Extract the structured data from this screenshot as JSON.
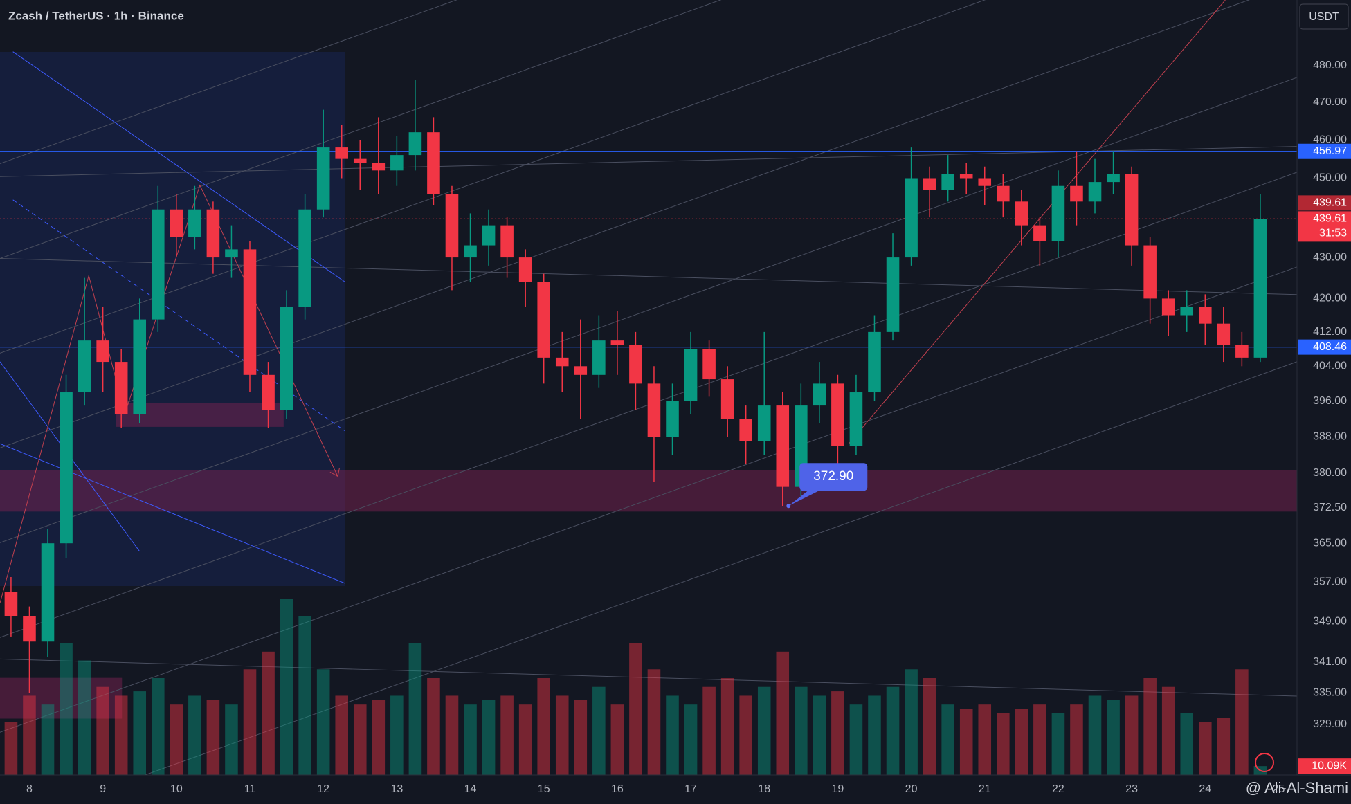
{
  "chart_data": {
    "type": "candlestick",
    "title": "Zcash / TetherUS · 1h · Binance",
    "currency": "USDT",
    "countdown": "31:53",
    "watermark": "@ Ali-Al-Shami",
    "log_scale": true,
    "grid": true,
    "up_color": "#089981",
    "down_color": "#f23645",
    "xlim": [
      7.6,
      25.25
    ],
    "xticks": [
      8,
      9,
      10,
      11,
      12,
      13,
      14,
      15,
      16,
      17,
      18,
      19,
      20,
      21,
      22,
      23,
      24,
      25
    ],
    "ylim": [
      319.6,
      498.4
    ],
    "yticks": [
      {
        "value": 480,
        "label": "480.00"
      },
      {
        "value": 470,
        "label": "470.00"
      },
      {
        "value": 460,
        "label": "460.00"
      },
      {
        "value": 450,
        "label": "450.00"
      },
      {
        "value": 430,
        "label": "430.00"
      },
      {
        "value": 420,
        "label": "420.00"
      },
      {
        "value": 412,
        "label": "412.00"
      },
      {
        "value": 404,
        "label": "404.00"
      },
      {
        "value": 396,
        "label": "396.00"
      },
      {
        "value": 388,
        "label": "388.00"
      },
      {
        "value": 380,
        "label": "380.00"
      },
      {
        "value": 372.5,
        "label": "372.50"
      },
      {
        "value": 365,
        "label": "365.00"
      },
      {
        "value": 357,
        "label": "357.00"
      },
      {
        "value": 349,
        "label": "349.00"
      },
      {
        "value": 341,
        "label": "341.00"
      },
      {
        "value": 335,
        "label": "335.00"
      },
      {
        "value": 329,
        "label": "329.00"
      }
    ],
    "x": [
      7.75,
      8,
      8.25,
      8.5,
      8.75,
      9,
      9.25,
      9.5,
      9.75,
      10,
      10.25,
      10.5,
      10.75,
      11,
      11.25,
      11.5,
      11.75,
      12,
      12.25,
      12.5,
      12.75,
      13,
      13.25,
      13.5,
      13.75,
      14,
      14.25,
      14.5,
      14.75,
      15,
      15.25,
      15.5,
      15.75,
      16,
      16.25,
      16.5,
      16.75,
      17,
      17.25,
      17.5,
      17.75,
      18,
      18.25,
      18.5,
      18.75,
      19,
      19.25,
      19.5,
      19.75,
      20,
      20.25,
      20.5,
      20.75,
      21,
      21.25,
      21.5,
      21.75,
      22,
      22.25,
      22.5,
      22.75,
      23,
      23.25,
      23.5,
      23.75,
      24,
      24.25,
      24.5,
      24.75
    ],
    "open": [
      355,
      350,
      345,
      365,
      398,
      410,
      405,
      393,
      415,
      442,
      435,
      442,
      430,
      432,
      402,
      394,
      418,
      442,
      458,
      455,
      454,
      452,
      456,
      462,
      446,
      430,
      433,
      438,
      430,
      424,
      406,
      404,
      402,
      410,
      409,
      400,
      388,
      396,
      408,
      401,
      392,
      387,
      395,
      377,
      395,
      400,
      386,
      398,
      412,
      430,
      450,
      447,
      451,
      450,
      448,
      444,
      438,
      434,
      448,
      444,
      449,
      451,
      433,
      420,
      416,
      418,
      414,
      409,
      406
    ],
    "high": [
      358,
      352,
      368,
      402,
      425,
      418,
      408,
      420,
      448,
      446,
      448,
      444,
      438,
      434,
      405,
      422,
      446,
      468,
      464,
      460,
      466,
      461,
      476,
      466,
      448,
      441,
      442,
      440,
      432,
      426,
      412,
      415,
      416,
      417,
      412,
      404,
      400,
      412,
      410,
      404,
      395,
      412,
      398,
      400,
      405,
      402,
      402,
      416,
      436,
      458,
      453,
      456,
      454,
      453,
      451,
      447,
      440,
      452,
      457,
      455,
      457,
      453,
      435,
      422,
      422,
      421,
      418,
      412,
      446
    ],
    "low": [
      346,
      335,
      342,
      362,
      395,
      398,
      390,
      391,
      412,
      430,
      432,
      426,
      425,
      398,
      390,
      392,
      415,
      440,
      450,
      447,
      446,
      448,
      452,
      443,
      422,
      424,
      428,
      425,
      418,
      400,
      398,
      392,
      399,
      402,
      394,
      378,
      384,
      393,
      397,
      388,
      382,
      384,
      372.9,
      375,
      391,
      382,
      384,
      396,
      410,
      428,
      440,
      444,
      446,
      443,
      440,
      433,
      428,
      430,
      438,
      441,
      446,
      428,
      414,
      411,
      412,
      409,
      405,
      404,
      405
    ],
    "close": [
      350,
      345,
      365,
      398,
      410,
      405,
      393,
      415,
      442,
      435,
      442,
      430,
      432,
      402,
      394,
      418,
      442,
      458,
      455,
      454,
      452,
      456,
      462,
      446,
      430,
      433,
      438,
      430,
      424,
      406,
      404,
      402,
      410,
      409,
      400,
      388,
      396,
      408,
      401,
      392,
      387,
      395,
      377,
      395,
      400,
      386,
      398,
      412,
      430,
      450,
      447,
      451,
      450,
      448,
      444,
      438,
      434,
      448,
      444,
      449,
      451,
      433,
      420,
      416,
      418,
      414,
      409,
      406,
      439.61
    ],
    "volume": [
      60,
      90,
      80,
      150,
      130,
      100,
      90,
      95,
      110,
      80,
      90,
      85,
      80,
      120,
      140,
      200,
      180,
      120,
      90,
      80,
      85,
      90,
      150,
      110,
      90,
      80,
      85,
      90,
      80,
      110,
      90,
      85,
      100,
      80,
      150,
      120,
      90,
      80,
      100,
      110,
      90,
      100,
      140,
      100,
      90,
      95,
      80,
      90,
      100,
      120,
      110,
      80,
      75,
      80,
      70,
      75,
      80,
      70,
      80,
      90,
      85,
      90,
      110,
      100,
      70,
      60,
      65,
      120,
      10.09
    ],
    "vlim": [
      0,
      220
    ],
    "current_volume": {
      "value": 10.09,
      "label": "10.09K"
    },
    "levels": [
      {
        "value": 456.97,
        "color": "#2962ff"
      },
      {
        "value": 408.46,
        "color": "#2962ff"
      }
    ],
    "zones": [
      {
        "from": 371.7,
        "to": 380.6,
        "x": [
          7.6,
          25.25
        ]
      },
      {
        "from": 390.2,
        "to": 395.6,
        "x": [
          9.18,
          11.46
        ]
      },
      {
        "from": 330.1,
        "to": 337.9,
        "x": [
          7.6,
          9.26
        ]
      }
    ],
    "annotations": [
      {
        "text": "372.90",
        "value": 372.9,
        "x": 18.33
      }
    ]
  }
}
